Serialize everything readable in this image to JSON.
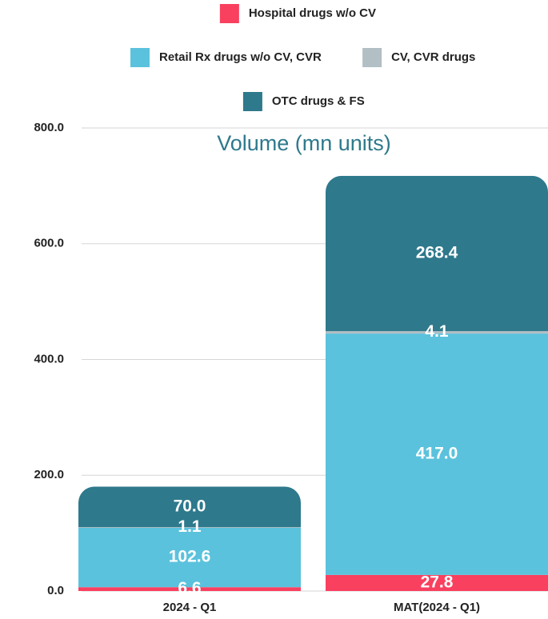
{
  "chart_data": {
    "type": "stacked_bar",
    "title": "Volume (mn units)",
    "categories": [
      "2024 - Q1",
      "MAT(2024 - Q1)"
    ],
    "series": [
      {
        "name": "Hospital drugs w/o CV",
        "color": "#f9405f",
        "values": [
          6.6,
          27.8
        ],
        "value_labels": [
          "6.6",
          "27.8"
        ]
      },
      {
        "name": "Retail Rx drugs w/o CV, CVR",
        "color": "#5bc2dd",
        "values": [
          102.6,
          417.0
        ],
        "value_labels": [
          "102.6",
          "417.0"
        ]
      },
      {
        "name": "CV, CVR drugs",
        "color": "#b2bfc4",
        "values": [
          1.1,
          4.1
        ],
        "value_labels": [
          "1.1",
          "4.1"
        ]
      },
      {
        "name": "OTC drugs & FS",
        "color": "#2e798c",
        "values": [
          70.0,
          268.4
        ],
        "value_labels": [
          "70.0",
          "268.4"
        ]
      }
    ],
    "ylim": [
      0,
      800
    ],
    "yticks": [
      {
        "value": 0,
        "label": "0.0"
      },
      {
        "value": 200,
        "label": "200.0"
      },
      {
        "value": 400,
        "label": "400.0"
      },
      {
        "value": 600,
        "label": "600.0"
      },
      {
        "value": 800,
        "label": "800.0"
      }
    ],
    "grid": true,
    "legend": "top"
  }
}
